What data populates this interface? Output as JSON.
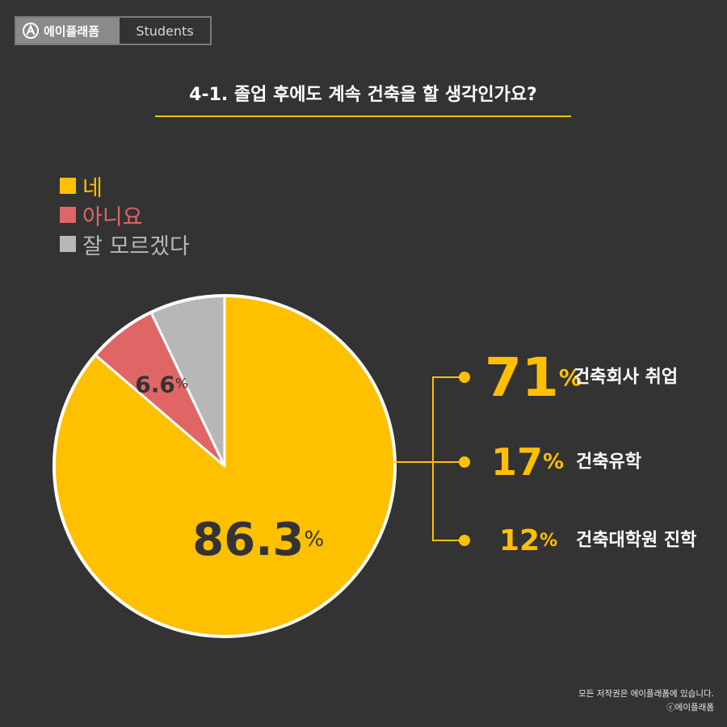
{
  "brand": {
    "logo_icon": "a-circle-logo-icon",
    "name": "에이플래폼",
    "tag": "Students"
  },
  "title": "4-1. 졸업 후에도 계속 건축을 할 생각인가요?",
  "colors": {
    "yes": "#ffc000",
    "no": "#e06666",
    "unsure": "#b7b7b7",
    "text_dark": "#333333",
    "accent": "#ffc000"
  },
  "legend": [
    {
      "label": "네",
      "color": "#ffc000"
    },
    {
      "label": "아니요",
      "color": "#e06666"
    },
    {
      "label": "잘 모르겠다",
      "color": "#b7b7b7"
    }
  ],
  "chart_data": {
    "type": "pie",
    "slices": [
      {
        "name": "네",
        "value": 86.3,
        "label_num": "86.3",
        "label_unit": "%"
      },
      {
        "name": "아니요",
        "value": 6.6,
        "label_num": "6.6",
        "label_unit": "%"
      },
      {
        "name": "잘 모르겠다",
        "value": 7.1,
        "label_num": "",
        "label_unit": ""
      }
    ],
    "breakdown_of": "네",
    "breakdown": [
      {
        "value": 71,
        "num": "71",
        "unit": "%",
        "label": "건축회사 취업"
      },
      {
        "value": 17,
        "num": "17",
        "unit": "%",
        "label": "건축유학"
      },
      {
        "value": 12,
        "num": "12",
        "unit": "%",
        "label": "건축대학원 진학"
      }
    ]
  },
  "footer": {
    "line1": "모든 저작권은 에이플래폼에 있습니다.",
    "line2": "ⓒ에이플래폼"
  }
}
